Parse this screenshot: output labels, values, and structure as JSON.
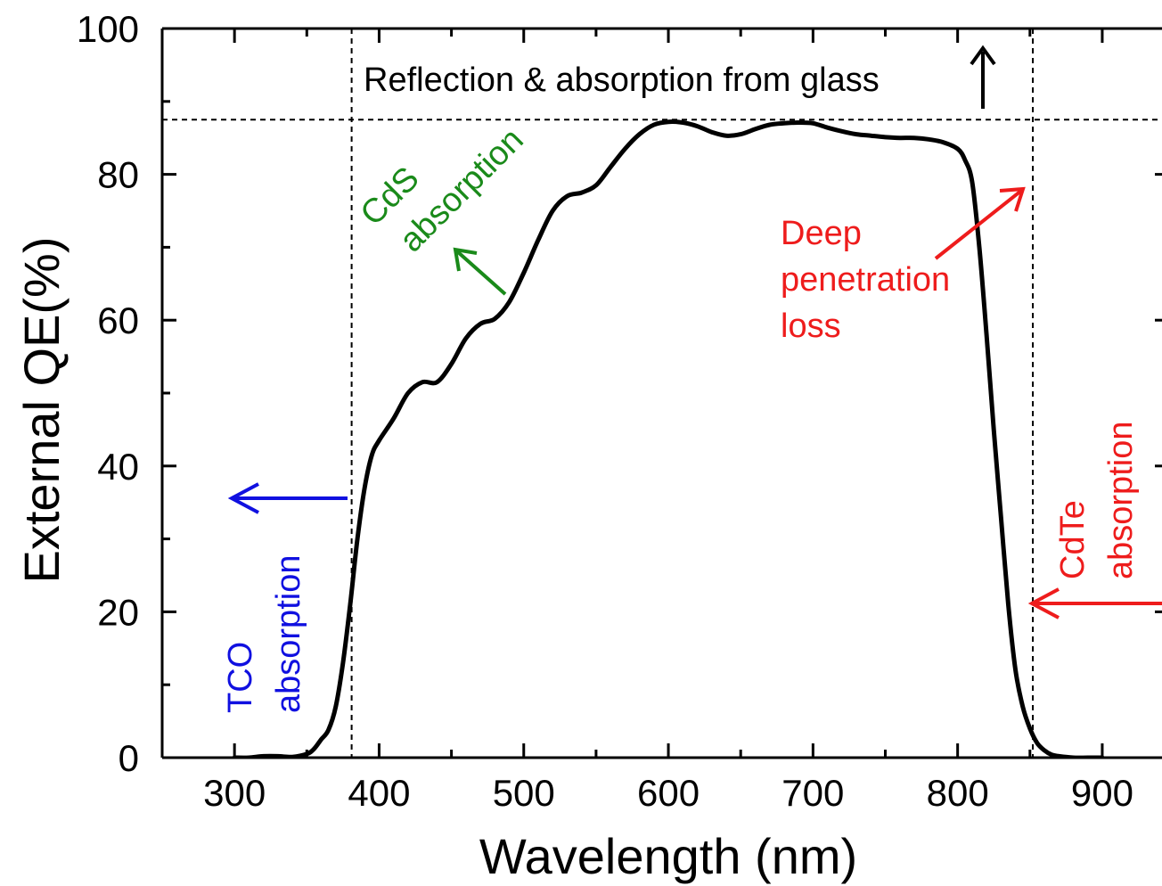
{
  "chart_data": {
    "type": "line",
    "xlabel": "Wavelength (nm)",
    "ylabel": "External QE(%)",
    "xlim": [
      250,
      910
    ],
    "ylim": [
      0,
      100
    ],
    "xticks": [
      300,
      400,
      500,
      600,
      700,
      800,
      900
    ],
    "yticks": [
      0,
      20,
      40,
      60,
      80,
      100
    ],
    "grid": false,
    "legend": "none",
    "series": [
      {
        "color": "#000000",
        "x": [
          300,
          310,
          320,
          330,
          340,
          350,
          355,
          360,
          365,
          370,
          375,
          380,
          385,
          390,
          395,
          400,
          410,
          420,
          430,
          440,
          450,
          460,
          470,
          480,
          490,
          500,
          510,
          520,
          530,
          540,
          550,
          560,
          570,
          580,
          590,
          600,
          610,
          620,
          630,
          640,
          650,
          660,
          670,
          680,
          690,
          700,
          710,
          720,
          730,
          740,
          750,
          760,
          770,
          780,
          790,
          800,
          805,
          810,
          815,
          820,
          825,
          830,
          835,
          840,
          845,
          850,
          855,
          860,
          865,
          870,
          880,
          890,
          900
        ],
        "y": [
          0,
          0,
          0.2,
          0.2,
          0.1,
          0.5,
          1.2,
          2.5,
          3.8,
          7,
          13,
          21,
          30,
          37,
          41.5,
          43.5,
          46.5,
          50,
          51.5,
          51.5,
          54,
          57.5,
          59.5,
          60.2,
          62.5,
          66.5,
          71,
          75,
          77,
          77.5,
          78.5,
          81,
          83.5,
          85.5,
          86.8,
          87.2,
          87.1,
          86.6,
          85.8,
          85.3,
          85.5,
          86.2,
          86.8,
          87,
          87.1,
          87,
          86.4,
          85.9,
          85.5,
          85.3,
          85.1,
          85,
          85,
          84.8,
          84.4,
          83.5,
          82,
          79,
          70,
          58,
          45,
          33,
          21,
          12,
          7,
          4,
          2,
          1,
          0.4,
          0.2,
          0,
          0,
          0
        ]
      }
    ],
    "reference_lines": {
      "vertical": [
        381,
        852
      ],
      "horizontal": [
        87.5
      ]
    },
    "annotations": [
      {
        "text": "Reflection & absorption from glass",
        "color": "#000000"
      },
      {
        "text": "CdS absorption",
        "color": "#1a8a1a"
      },
      {
        "text": "Deep penetration loss",
        "color": "#ee1c1c"
      },
      {
        "text": "TCO absorption",
        "color": "#1010e0"
      },
      {
        "text": "CdTe absorption",
        "color": "#ee1c1c"
      }
    ]
  },
  "labels": {
    "glass": "Reflection & absorption from glass",
    "cds_1": "CdS",
    "cds_2": "absorption",
    "deep_1": "Deep",
    "deep_2": "penetration",
    "deep_3": "loss",
    "tco_1": "TCO",
    "tco_2": "absorption",
    "cdte_1": "CdTe",
    "cdte_2": "absorption"
  },
  "colors": {
    "green": "#1a8a1a",
    "red": "#ee1c1c",
    "blue": "#1010e0",
    "black": "#000000"
  }
}
